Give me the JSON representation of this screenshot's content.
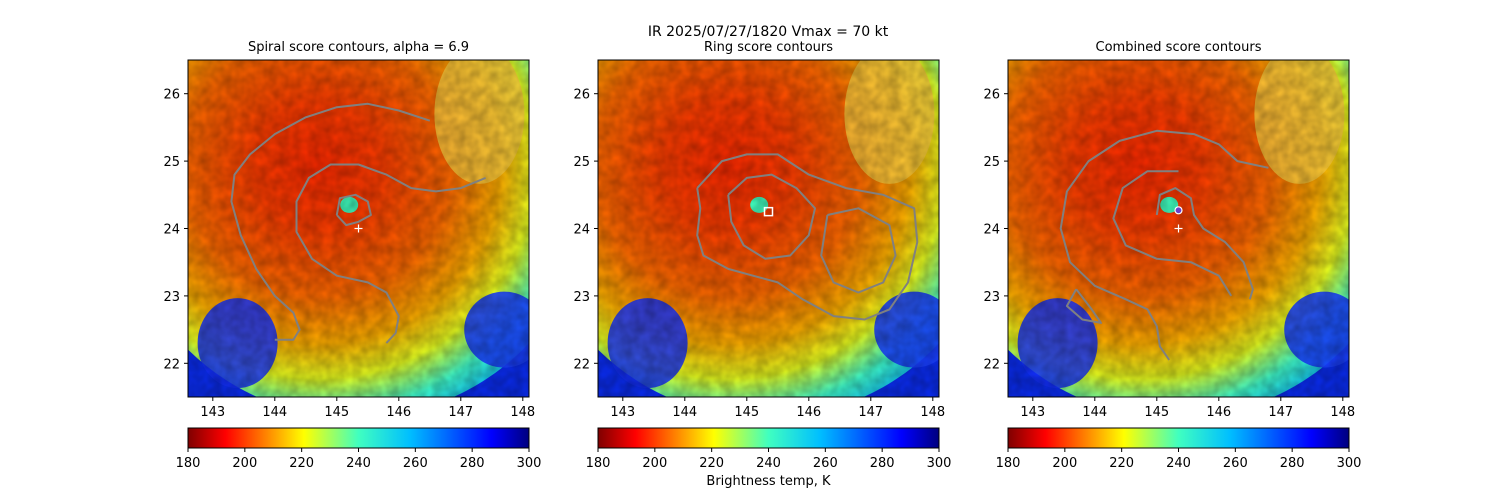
{
  "suptitle": "IR  2025/07/27/1820    Vmax = 70 kt",
  "colors": {
    "contour": "#808080",
    "center_marker": "#ffffff",
    "ring_marker": "#ffffff",
    "combined_marker_fill": "#6a3fc7"
  },
  "chart_data": [
    {
      "type": "heatmap",
      "title": "Spiral score contours, alpha =  6.9",
      "xlim": [
        142.6,
        148.1
      ],
      "ylim": [
        21.5,
        26.5
      ],
      "xticks": [
        "143",
        "144",
        "145",
        "146",
        "147",
        "148"
      ],
      "yticks": [
        "22",
        "23",
        "24",
        "25",
        "26"
      ],
      "center": [
        145.35,
        24.0
      ],
      "colorbar": {
        "range": [
          180,
          300
        ],
        "ticks": [
          "180",
          "200",
          "220",
          "240",
          "260",
          "280",
          "300"
        ],
        "label": ""
      },
      "contours": [
        [
          [
            146.5,
            25.6
          ],
          [
            146.0,
            25.75
          ],
          [
            145.5,
            25.85
          ],
          [
            145.0,
            25.8
          ],
          [
            144.5,
            25.65
          ],
          [
            144.0,
            25.4
          ],
          [
            143.6,
            25.1
          ],
          [
            143.35,
            24.8
          ],
          [
            143.3,
            24.4
          ],
          [
            143.45,
            23.9
          ],
          [
            143.7,
            23.4
          ],
          [
            144.0,
            23.0
          ],
          [
            144.3,
            22.75
          ],
          [
            144.4,
            22.5
          ],
          [
            144.3,
            22.35
          ],
          [
            144.0,
            22.35
          ]
        ],
        [
          [
            147.4,
            24.75
          ],
          [
            147.0,
            24.6
          ],
          [
            146.6,
            24.55
          ],
          [
            146.2,
            24.6
          ],
          [
            145.8,
            24.8
          ],
          [
            145.35,
            24.95
          ],
          [
            144.9,
            24.95
          ],
          [
            144.55,
            24.75
          ],
          [
            144.35,
            24.4
          ],
          [
            144.35,
            23.95
          ],
          [
            144.6,
            23.55
          ],
          [
            145.0,
            23.3
          ],
          [
            145.5,
            23.2
          ],
          [
            145.8,
            23.05
          ],
          [
            146.0,
            22.7
          ],
          [
            145.95,
            22.45
          ],
          [
            145.8,
            22.3
          ]
        ],
        [
          [
            145.0,
            24.2
          ],
          [
            145.05,
            24.45
          ],
          [
            145.3,
            24.5
          ],
          [
            145.5,
            24.4
          ],
          [
            145.55,
            24.2
          ],
          [
            145.35,
            24.1
          ],
          [
            145.15,
            24.05
          ],
          [
            145.0,
            24.2
          ]
        ]
      ]
    },
    {
      "type": "heatmap",
      "title": "Ring score contours",
      "xlim": [
        142.6,
        148.1
      ],
      "ylim": [
        21.5,
        26.5
      ],
      "xticks": [
        "143",
        "144",
        "145",
        "146",
        "147",
        "148"
      ],
      "yticks": [
        "22",
        "23",
        "24",
        "25",
        "26"
      ],
      "ring_marker": [
        145.35,
        24.25
      ],
      "colorbar": {
        "range": [
          180,
          300
        ],
        "ticks": [
          "180",
          "200",
          "220",
          "240",
          "260",
          "280",
          "300"
        ],
        "label": "Brightness temp, K"
      },
      "contours": [
        [
          [
            144.2,
            24.6
          ],
          [
            144.6,
            25.0
          ],
          [
            145.0,
            25.1
          ],
          [
            145.5,
            25.1
          ],
          [
            146.0,
            24.8
          ],
          [
            146.6,
            24.6
          ],
          [
            147.2,
            24.5
          ],
          [
            147.7,
            24.3
          ],
          [
            147.75,
            23.8
          ],
          [
            147.6,
            23.2
          ],
          [
            147.3,
            22.8
          ],
          [
            146.9,
            22.65
          ],
          [
            146.4,
            22.7
          ],
          [
            145.9,
            22.95
          ],
          [
            145.5,
            23.2
          ],
          [
            145.1,
            23.3
          ],
          [
            144.7,
            23.4
          ],
          [
            144.3,
            23.6
          ],
          [
            144.2,
            23.9
          ],
          [
            144.25,
            24.3
          ],
          [
            144.2,
            24.6
          ]
        ],
        [
          [
            144.7,
            24.5
          ],
          [
            145.0,
            24.75
          ],
          [
            145.4,
            24.8
          ],
          [
            145.8,
            24.6
          ],
          [
            146.1,
            24.3
          ],
          [
            146.0,
            23.9
          ],
          [
            145.7,
            23.6
          ],
          [
            145.3,
            23.55
          ],
          [
            144.95,
            23.75
          ],
          [
            144.75,
            24.1
          ],
          [
            144.7,
            24.5
          ]
        ],
        [
          [
            146.3,
            24.2
          ],
          [
            146.8,
            24.3
          ],
          [
            147.3,
            24.05
          ],
          [
            147.4,
            23.6
          ],
          [
            147.2,
            23.2
          ],
          [
            146.8,
            23.05
          ],
          [
            146.4,
            23.2
          ],
          [
            146.2,
            23.6
          ],
          [
            146.3,
            24.2
          ]
        ]
      ]
    },
    {
      "type": "heatmap",
      "title": "Combined score contours",
      "xlim": [
        142.6,
        148.1
      ],
      "ylim": [
        21.5,
        26.5
      ],
      "xticks": [
        "143",
        "144",
        "145",
        "146",
        "147",
        "148"
      ],
      "yticks": [
        "22",
        "23",
        "24",
        "25",
        "26"
      ],
      "center": [
        145.35,
        24.0
      ],
      "combined_marker": [
        145.35,
        24.27
      ],
      "colorbar": {
        "range": [
          180,
          300
        ],
        "ticks": [
          "180",
          "200",
          "220",
          "240",
          "260",
          "280",
          "300"
        ],
        "label": ""
      },
      "contours": [
        [
          [
            146.8,
            24.9
          ],
          [
            146.3,
            25.0
          ],
          [
            146.0,
            25.25
          ],
          [
            145.6,
            25.4
          ],
          [
            145.0,
            25.45
          ],
          [
            144.4,
            25.3
          ],
          [
            143.9,
            25.0
          ],
          [
            143.55,
            24.55
          ],
          [
            143.45,
            24.0
          ],
          [
            143.6,
            23.5
          ],
          [
            144.0,
            23.15
          ],
          [
            144.5,
            22.95
          ],
          [
            144.85,
            22.8
          ],
          [
            145.0,
            22.55
          ],
          [
            145.05,
            22.25
          ],
          [
            145.2,
            22.05
          ]
        ],
        [
          [
            145.0,
            24.2
          ],
          [
            145.05,
            24.5
          ],
          [
            145.3,
            24.6
          ],
          [
            145.55,
            24.45
          ],
          [
            145.6,
            24.2
          ],
          [
            145.75,
            24.0
          ],
          [
            146.1,
            23.8
          ],
          [
            146.4,
            23.5
          ],
          [
            146.55,
            23.1
          ],
          [
            146.5,
            22.95
          ]
        ],
        [
          [
            145.35,
            24.85
          ],
          [
            144.85,
            24.85
          ],
          [
            144.45,
            24.6
          ],
          [
            144.3,
            24.15
          ],
          [
            144.5,
            23.75
          ],
          [
            145.0,
            23.55
          ],
          [
            145.55,
            23.5
          ],
          [
            146.0,
            23.3
          ],
          [
            146.2,
            23.0
          ]
        ],
        [
          [
            143.7,
            23.1
          ],
          [
            143.55,
            22.85
          ],
          [
            143.8,
            22.65
          ],
          [
            144.1,
            22.6
          ],
          [
            143.95,
            22.8
          ],
          [
            143.7,
            23.1
          ]
        ]
      ]
    }
  ]
}
